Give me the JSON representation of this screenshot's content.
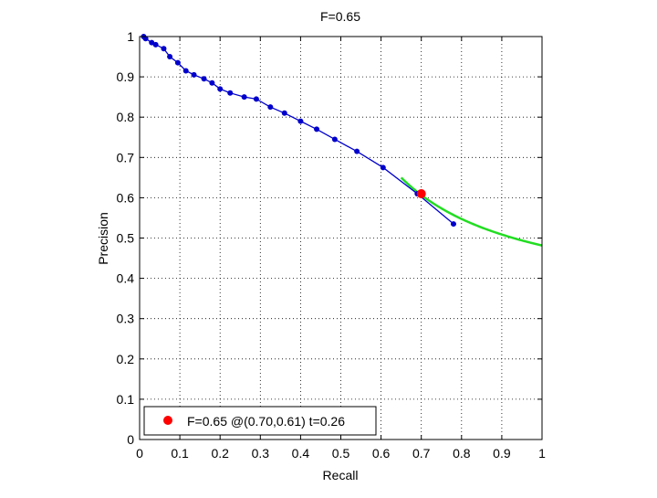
{
  "chart_data": {
    "type": "line",
    "title": "F=0.65",
    "xlabel": "Recall",
    "ylabel": "Precision",
    "xlim": [
      0,
      1
    ],
    "ylim": [
      0,
      1
    ],
    "grid": true,
    "x_ticks": [
      0,
      0.1,
      0.2,
      0.3,
      0.4,
      0.5,
      0.6,
      0.7,
      0.8,
      0.9,
      1
    ],
    "y_ticks": [
      0,
      0.1,
      0.2,
      0.3,
      0.4,
      0.5,
      0.6,
      0.7,
      0.8,
      0.9,
      1
    ],
    "x_tick_labels": [
      "0",
      "0.1",
      "0.2",
      "0.3",
      "0.4",
      "0.5",
      "0.6",
      "0.7",
      "0.8",
      "0.9",
      "1"
    ],
    "y_tick_labels": [
      "0",
      "0.1",
      "0.2",
      "0.3",
      "0.4",
      "0.5",
      "0.6",
      "0.7",
      "0.8",
      "0.9",
      "1"
    ],
    "series": [
      {
        "color": "#0000cc",
        "x": [
          0.01,
          0.015,
          0.03,
          0.04,
          0.06,
          0.075,
          0.095,
          0.115,
          0.135,
          0.16,
          0.18,
          0.2,
          0.225,
          0.26,
          0.29,
          0.325,
          0.36,
          0.4,
          0.44,
          0.485,
          0.54,
          0.605,
          0.69,
          0.78
        ],
        "y": [
          1.0,
          0.995,
          0.985,
          0.98,
          0.97,
          0.95,
          0.935,
          0.915,
          0.905,
          0.895,
          0.885,
          0.87,
          0.86,
          0.85,
          0.845,
          0.825,
          0.81,
          0.79,
          0.77,
          0.745,
          0.715,
          0.675,
          0.61,
          0.535
        ]
      }
    ],
    "f_curve": {
      "color": "#22dd22",
      "f": 0.65,
      "x_range": [
        0.65,
        1.0
      ]
    },
    "best_point": {
      "color": "#ff0000",
      "x": 0.7,
      "y": 0.61
    },
    "legend": {
      "position": "bottom-left",
      "entries": [
        {
          "label": "F=0.65 @(0.70,0.61) t=0.26",
          "color": "#ff0000"
        }
      ]
    }
  }
}
